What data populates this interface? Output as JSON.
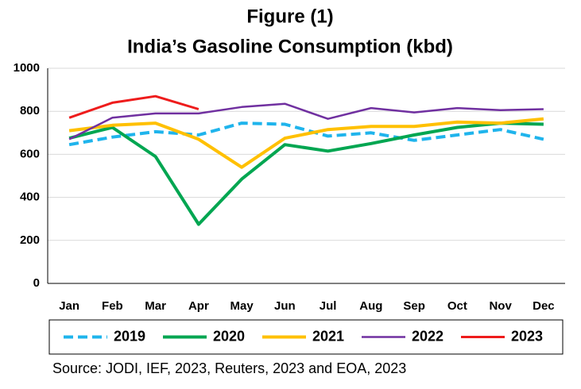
{
  "chart_data": {
    "type": "line",
    "title": "Figure (1)",
    "subtitle": "India’s Gasoline Consumption (kbd)",
    "source": "Source: JODI, IEF, 2023, Reuters, 2023 and EOA, 2023",
    "categories": [
      "Jan",
      "Feb",
      "Mar",
      "Apr",
      "May",
      "Jun",
      "Jul",
      "Aug",
      "Sep",
      "Oct",
      "Nov",
      "Dec"
    ],
    "series": [
      {
        "name": "2019",
        "color": "#1fb4ec",
        "dashed": true,
        "values": [
          645,
          680,
          705,
          690,
          745,
          740,
          685,
          700,
          665,
          690,
          715,
          670
        ]
      },
      {
        "name": "2020",
        "color": "#00a651",
        "values": [
          675,
          725,
          590,
          275,
          485,
          645,
          615,
          650,
          690,
          725,
          745,
          740
        ]
      },
      {
        "name": "2021",
        "color": "#ffc000",
        "values": [
          710,
          735,
          745,
          670,
          540,
          675,
          715,
          730,
          730,
          750,
          745,
          765
        ]
      },
      {
        "name": "2022",
        "color": "#7030a0",
        "values": [
          670,
          770,
          790,
          790,
          820,
          835,
          765,
          815,
          795,
          815,
          805,
          810
        ]
      },
      {
        "name": "2023",
        "color": "#ee1c1c",
        "values": [
          770,
          840,
          870,
          810,
          null,
          null,
          null,
          null,
          null,
          null,
          null,
          null
        ]
      }
    ],
    "ylim": [
      0,
      1000
    ],
    "yticks": [
      0,
      200,
      400,
      600,
      800,
      1000
    ],
    "grid": true,
    "legend": "bottom"
  }
}
